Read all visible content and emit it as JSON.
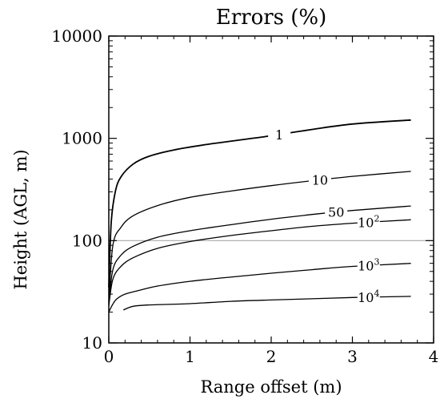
{
  "chart_data": {
    "type": "line",
    "title": "Errors (%)",
    "xlabel": "Range offset (m)",
    "ylabel": "Height (AGL, m)",
    "xlim": [
      0,
      4
    ],
    "ylim": [
      10,
      10000
    ],
    "y_scale": "log",
    "x_ticks": [
      "0",
      "1",
      "2",
      "3",
      "4"
    ],
    "y_ticks": [
      "10",
      "100",
      "1000",
      "10000"
    ],
    "reference_line": {
      "y": 100,
      "color": "#aaaaaa"
    },
    "series": [
      {
        "name": "1",
        "x": [
          0,
          0.03,
          0.08,
          0.15,
          0.3,
          0.5,
          0.8,
          1.2,
          1.6,
          2.0,
          2.5,
          3.0,
          3.72
        ],
        "y": [
          35,
          150,
          300,
          420,
          560,
          670,
          770,
          870,
          960,
          1060,
          1220,
          1380,
          1510
        ]
      },
      {
        "name": "10",
        "x": [
          0,
          0.05,
          0.15,
          0.3,
          0.6,
          1.0,
          1.5,
          2.0,
          2.5,
          3.0,
          3.72
        ],
        "y": [
          25,
          90,
          135,
          175,
          220,
          265,
          305,
          345,
          385,
          425,
          475
        ]
      },
      {
        "name": "50",
        "x": [
          0,
          0.05,
          0.15,
          0.3,
          0.6,
          1.0,
          1.5,
          2.0,
          2.5,
          3.0,
          3.72
        ],
        "y": [
          24,
          52,
          72,
          88,
          108,
          125,
          143,
          162,
          180,
          197,
          218
        ]
      },
      {
        "name": "10^2",
        "x": [
          0,
          0.05,
          0.15,
          0.3,
          0.6,
          1.0,
          1.5,
          2.0,
          2.5,
          3.0,
          3.72
        ],
        "y": [
          23,
          42,
          56,
          68,
          84,
          98,
          112,
          125,
          138,
          148,
          160
        ]
      },
      {
        "name": "10^3",
        "x": [
          0,
          0.05,
          0.1,
          0.2,
          0.4,
          0.6,
          1.0,
          1.5,
          2.0,
          2.5,
          3.0,
          3.72
        ],
        "y": [
          20,
          24,
          27,
          30,
          33,
          36,
          40,
          44,
          48,
          52,
          56,
          60
        ]
      },
      {
        "name": "10^4",
        "x": [
          0.18,
          0.3,
          0.5,
          1.0,
          1.5,
          2.0,
          2.5,
          3.0,
          3.72
        ],
        "y": [
          21,
          22.8,
          23.5,
          24.2,
          25.5,
          26.3,
          27,
          27.8,
          28.5
        ]
      }
    ]
  }
}
